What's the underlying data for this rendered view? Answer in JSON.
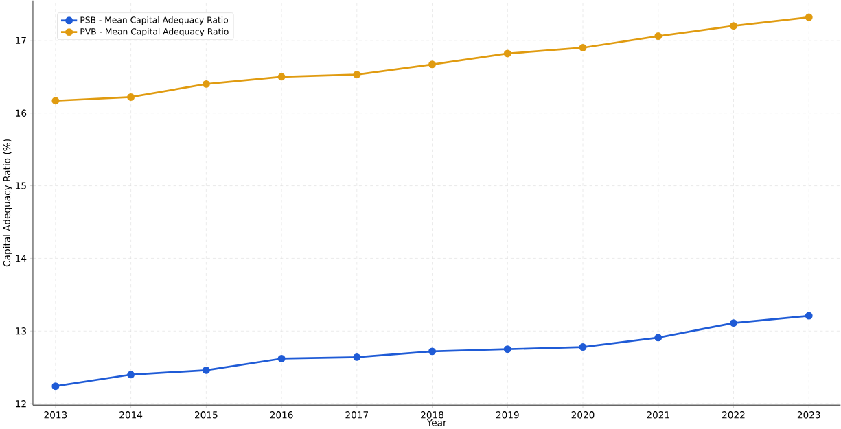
{
  "chart_data": {
    "type": "line",
    "xlabel": "Year",
    "ylabel": "Capital Adequacy Ratio (%)",
    "x": [
      2013,
      2014,
      2015,
      2016,
      2017,
      2018,
      2019,
      2020,
      2021,
      2022,
      2023
    ],
    "series": [
      {
        "name": "PSB - Mean Capital Adequacy Ratio",
        "color": "#1f5bd6",
        "values": [
          12.24,
          12.4,
          12.46,
          12.62,
          12.64,
          12.72,
          12.75,
          12.78,
          12.91,
          13.11,
          13.21
        ]
      },
      {
        "name": "PVB - Mean Capital Adequacy Ratio",
        "color": "#e09b10",
        "values": [
          16.17,
          16.22,
          16.4,
          16.5,
          16.53,
          16.67,
          16.82,
          16.9,
          17.06,
          17.2,
          17.32
        ]
      }
    ],
    "xlim": [
      2012.7,
      2023.42
    ],
    "ylim": [
      11.98,
      17.55
    ],
    "xticks": [
      2013,
      2014,
      2015,
      2016,
      2017,
      2018,
      2019,
      2020,
      2021,
      2022,
      2023
    ],
    "yticks": [
      12,
      13,
      14,
      15,
      16,
      17
    ],
    "grid": true,
    "legend": "top left",
    "marker": "circle",
    "line_style": "solid"
  }
}
